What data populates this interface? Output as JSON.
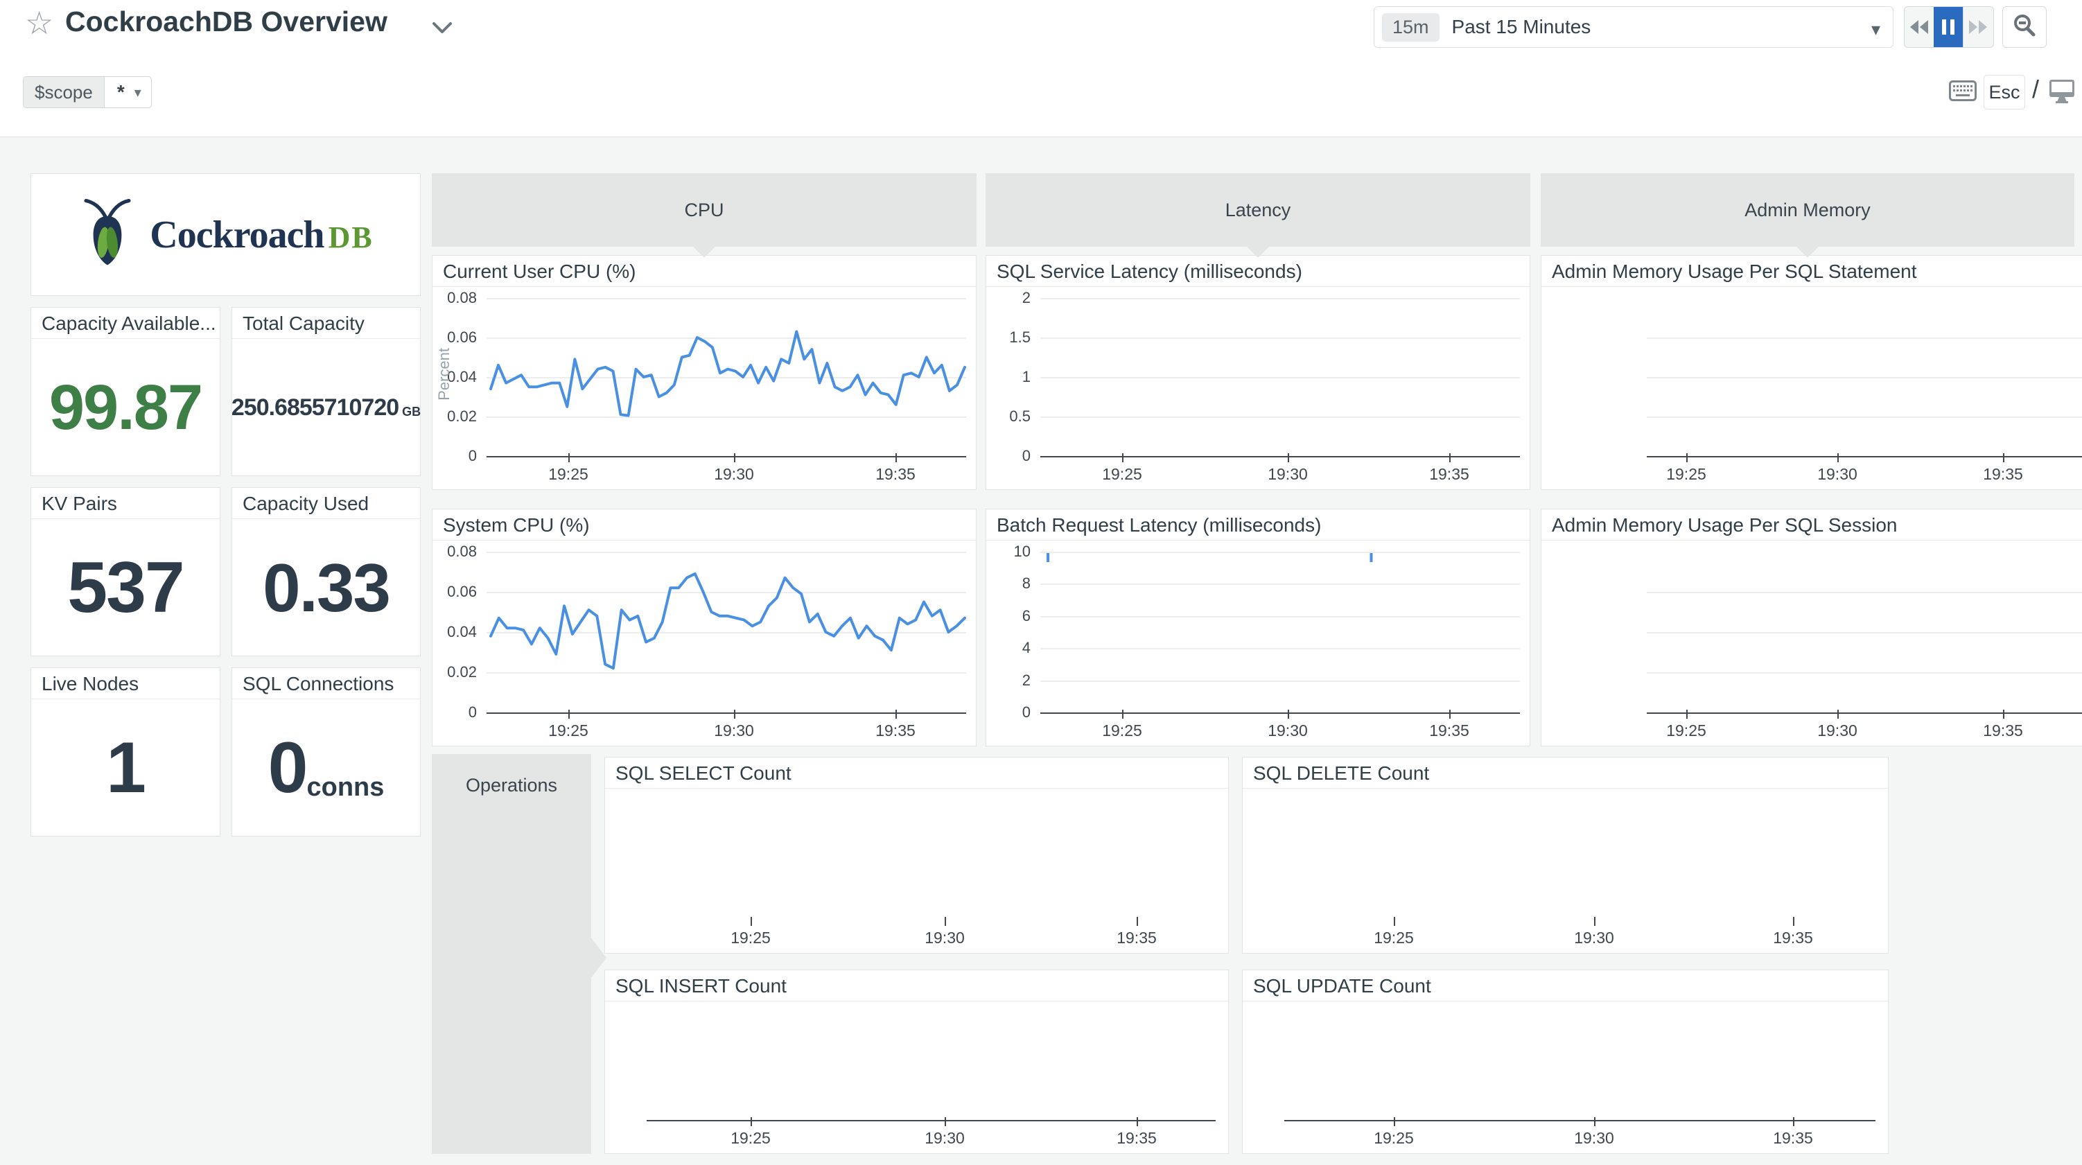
{
  "header": {
    "title": "CockroachDB Overview"
  },
  "time_picker": {
    "badge": "15m",
    "label": "Past 15 Minutes"
  },
  "shortcuts": {
    "esc": "Esc",
    "slash": "/"
  },
  "scope": {
    "name": "$scope",
    "value": "*"
  },
  "logo": {
    "brand": "Cockroach",
    "brand_suffix": "DB"
  },
  "stats": {
    "capacity_available": {
      "label": "Capacity Available...",
      "value": "99.87"
    },
    "total_capacity": {
      "label": "Total Capacity",
      "value": "250.6855710720",
      "unit": "GB"
    },
    "kv_pairs": {
      "label": "KV Pairs",
      "value": "537"
    },
    "capacity_used": {
      "label": "Capacity Used",
      "value": "0.33"
    },
    "live_nodes": {
      "label": "Live Nodes",
      "value": "1"
    },
    "sql_connections": {
      "label": "SQL Connections",
      "value": "0",
      "unit": "conns"
    }
  },
  "groups": {
    "cpu": "CPU",
    "latency": "Latency",
    "admin_memory": "Admin Memory",
    "operations": "Operations"
  },
  "colors": {
    "line_blue": "#4a90e2",
    "active_blue": "#2a6abf",
    "stat_green": "#3e7e47",
    "brand_navy": "#1f3352",
    "brand_green": "#5d9732"
  },
  "chart_data": {
    "current_user_cpu": {
      "type": "line",
      "title": "Current User CPU (%)",
      "ylabel": "Percent",
      "yticks": [
        0,
        0.02,
        0.04,
        0.06,
        0.08
      ],
      "ylim": [
        0,
        0.08
      ],
      "xticks": [
        "19:25",
        "19:30",
        "19:35"
      ],
      "color": "#4a90e2",
      "values": [
        0.034,
        0.046,
        0.037,
        0.039,
        0.041,
        0.035,
        0.035,
        0.036,
        0.037,
        0.037,
        0.025,
        0.049,
        0.034,
        0.039,
        0.044,
        0.045,
        0.043,
        0.021,
        0.0205,
        0.044,
        0.04,
        0.041,
        0.03,
        0.032,
        0.036,
        0.05,
        0.051,
        0.06,
        0.058,
        0.055,
        0.042,
        0.044,
        0.043,
        0.04,
        0.046,
        0.037,
        0.045,
        0.038,
        0.049,
        0.047,
        0.063,
        0.049,
        0.054,
        0.037,
        0.047,
        0.035,
        0.033,
        0.035,
        0.041,
        0.031,
        0.037,
        0.032,
        0.031,
        0.026,
        0.041,
        0.042,
        0.04,
        0.05,
        0.042,
        0.046,
        0.033,
        0.036,
        0.045
      ]
    },
    "system_cpu": {
      "type": "line",
      "title": "System CPU (%)",
      "yticks": [
        0,
        0.02,
        0.04,
        0.06,
        0.08
      ],
      "ylim": [
        0,
        0.08
      ],
      "xticks": [
        "19:25",
        "19:30",
        "19:35"
      ],
      "color": "#4a90e2",
      "values": [
        0.038,
        0.047,
        0.042,
        0.042,
        0.041,
        0.034,
        0.042,
        0.037,
        0.029,
        0.053,
        0.039,
        0.045,
        0.051,
        0.048,
        0.024,
        0.022,
        0.051,
        0.046,
        0.048,
        0.035,
        0.037,
        0.045,
        0.062,
        0.062,
        0.067,
        0.069,
        0.06,
        0.05,
        0.048,
        0.048,
        0.047,
        0.046,
        0.043,
        0.045,
        0.053,
        0.057,
        0.067,
        0.062,
        0.059,
        0.045,
        0.049,
        0.04,
        0.038,
        0.043,
        0.047,
        0.037,
        0.043,
        0.038,
        0.036,
        0.031,
        0.047,
        0.044,
        0.046,
        0.055,
        0.048,
        0.051,
        0.04,
        0.043,
        0.047
      ]
    },
    "sql_service_latency": {
      "type": "line",
      "title": "SQL Service Latency (milliseconds)",
      "yticks": [
        0,
        0.5,
        1,
        1.5,
        2
      ],
      "ylim": [
        0,
        2
      ],
      "xticks": [
        "19:25",
        "19:30",
        "19:35"
      ],
      "color": "#4a90e2",
      "values": []
    },
    "batch_request_latency": {
      "type": "line",
      "title": "Batch Request Latency (milliseconds)",
      "yticks": [
        0,
        2,
        4,
        6,
        8,
        10
      ],
      "ylim": [
        0,
        10
      ],
      "xticks": [
        "19:25",
        "19:30",
        "19:35"
      ],
      "color": "#4a90e2",
      "values": [],
      "spikes": [
        [
          0.016,
          10
        ],
        [
          0.69,
          10
        ]
      ]
    },
    "admin_memory_statement": {
      "type": "line",
      "title": "Admin Memory Usage Per SQL Statement",
      "yticks": [],
      "xticks": [
        "19:25",
        "19:30",
        "19:35"
      ],
      "values": []
    },
    "admin_memory_session": {
      "type": "line",
      "title": "Admin Memory Usage Per SQL Session",
      "yticks": [],
      "xticks": [
        "19:25",
        "19:30",
        "19:35"
      ],
      "values": []
    },
    "sql_select_count": {
      "type": "line",
      "title": "SQL SELECT Count",
      "yticks": [],
      "xticks": [
        "19:25",
        "19:30",
        "19:35"
      ],
      "values": []
    },
    "sql_delete_count": {
      "type": "line",
      "title": "SQL DELETE Count",
      "yticks": [],
      "xticks": [
        "19:25",
        "19:30",
        "19:35"
      ],
      "values": []
    },
    "sql_insert_count": {
      "type": "line",
      "title": "SQL INSERT Count",
      "yticks": [],
      "xticks": [
        "19:25",
        "19:30",
        "19:35"
      ],
      "values": []
    },
    "sql_update_count": {
      "type": "line",
      "title": "SQL UPDATE Count",
      "yticks": [],
      "xticks": [
        "19:25",
        "19:30",
        "19:35"
      ],
      "values": []
    }
  }
}
